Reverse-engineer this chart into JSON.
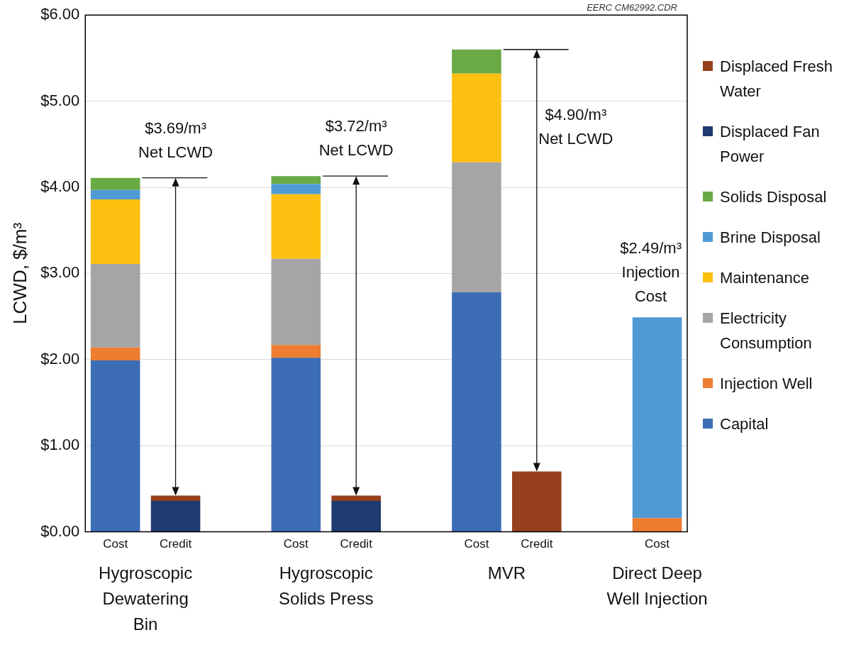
{
  "chart_data": {
    "type": "bar",
    "stacked": true,
    "ylabel": "LCWD, $/m³",
    "categories": [
      "Cost",
      "Credit",
      null,
      "Cost",
      "Credit",
      null,
      "Cost",
      "Credit",
      null,
      "Cost"
    ],
    "series": [
      {
        "name": "Capital",
        "color": "#3d6db5",
        "values": [
          1.99,
          null,
          null,
          2.02,
          null,
          null,
          2.78,
          null,
          null,
          null
        ]
      },
      {
        "name": "Injection Well",
        "color": "#ed7d31",
        "values": [
          0.15,
          null,
          null,
          0.15,
          null,
          null,
          null,
          null,
          null,
          0.16
        ]
      },
      {
        "name": "Electricity Consumption",
        "color": "#a5a5a5",
        "values": [
          0.97,
          null,
          null,
          1.0,
          null,
          null,
          1.51,
          null,
          null,
          null
        ]
      },
      {
        "name": "Maintenance",
        "color": "#fdbf10",
        "values": [
          0.75,
          null,
          null,
          0.75,
          null,
          null,
          1.03,
          null,
          null,
          null
        ]
      },
      {
        "name": "Brine Disposal",
        "color": "#509ad4",
        "values": [
          0.11,
          null,
          null,
          0.12,
          null,
          null,
          null,
          null,
          null,
          2.33
        ]
      },
      {
        "name": "Solids Disposal",
        "color": "#6aaa45",
        "values": [
          0.14,
          null,
          null,
          0.09,
          null,
          null,
          0.28,
          null,
          null,
          null
        ]
      },
      {
        "name": "Displaced Fan Power",
        "color": "#1f3a6e",
        "values": [
          null,
          0.36,
          null,
          null,
          0.36,
          null,
          null,
          null,
          null,
          null
        ]
      },
      {
        "name": "Displaced Fresh Water",
        "color": "#96401e",
        "values": [
          null,
          0.06,
          null,
          null,
          0.06,
          null,
          null,
          0.7,
          null,
          null
        ]
      }
    ],
    "ylim": [
      0,
      6
    ],
    "yticks": [
      {
        "value": 0,
        "label": "$0.00"
      },
      {
        "value": 1,
        "label": "$1.00"
      },
      {
        "value": 2,
        "label": "$2.00"
      },
      {
        "value": 3,
        "label": "$3.00"
      },
      {
        "value": 4,
        "label": "$4.00"
      },
      {
        "value": 5,
        "label": "$5.00"
      },
      {
        "value": 6,
        "label": "$6.00"
      }
    ],
    "grid": "y",
    "legend": "right",
    "annotations": [
      "$3.69/m³ Net LCWD",
      "$3.72/m³ Net LCWD",
      "$4.90/m³ Net LCWD",
      "$2.49/m³ Injection Cost",
      "Hygroscopic Dewatering Bin",
      "Hygroscopic Solids Press",
      "MVR",
      "Direct Deep Well Injection",
      "EERC CM62992.CDR"
    ]
  }
}
